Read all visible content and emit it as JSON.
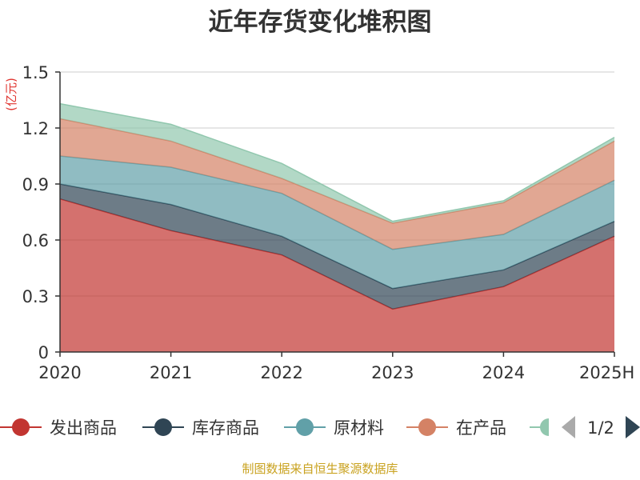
{
  "colors": {
    "发出商品": "#c23531",
    "库存商品": "#2f4554",
    "原材料": "#61a0a8",
    "在产品": "#d48265",
    "hidden_series": "#91c7ae"
  },
  "chart_data": {
    "type": "area",
    "stacked": true,
    "title": "近年存货变化堆积图",
    "ylabel": "(亿元)",
    "categories": [
      "2020",
      "2021",
      "2022",
      "2023",
      "2024",
      "2025H"
    ],
    "ylim": [
      0,
      1.5
    ],
    "yticks": [
      "0",
      "0.3",
      "0.6",
      "0.9",
      "1.2",
      "1.5"
    ],
    "grid": true,
    "series": [
      {
        "name": "发出商品",
        "color_key": "发出商品",
        "values": [
          0.82,
          0.65,
          0.52,
          0.23,
          0.35,
          0.62
        ]
      },
      {
        "name": "库存商品",
        "color_key": "库存商品",
        "values": [
          0.08,
          0.14,
          0.1,
          0.11,
          0.09,
          0.08
        ]
      },
      {
        "name": "原材料",
        "color_key": "原材料",
        "values": [
          0.15,
          0.2,
          0.23,
          0.21,
          0.19,
          0.22
        ]
      },
      {
        "name": "在产品",
        "color_key": "在产品",
        "values": [
          0.2,
          0.14,
          0.08,
          0.14,
          0.17,
          0.21
        ]
      },
      {
        "name": "",
        "color_key": "hidden_series",
        "values": [
          0.08,
          0.09,
          0.08,
          0.01,
          0.01,
          0.02
        ]
      }
    ],
    "legend": {
      "placement": "bottom",
      "items": [
        "发出商品",
        "库存商品",
        "原材料",
        "在产品"
      ],
      "page": "1/2"
    },
    "source": "制图数据来自恒生聚源数据库"
  }
}
